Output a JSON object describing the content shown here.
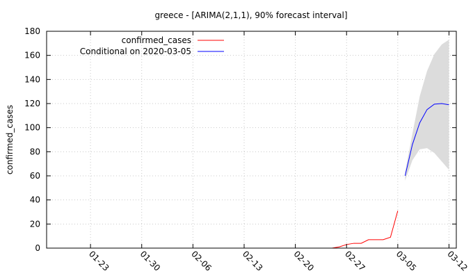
{
  "chart_data": {
    "type": "line",
    "title": "greece -  [ARIMA(2,1,1), 90% forecast interval]",
    "xlabel": "",
    "ylabel": "confirmed_cases",
    "x_range": [
      "2020-01-17",
      "2020-03-13"
    ],
    "ylim": [
      0,
      180
    ],
    "y_ticks": [
      0,
      20,
      40,
      60,
      80,
      100,
      120,
      140,
      160,
      180
    ],
    "x_ticks": [
      {
        "date": "2020-01-23",
        "label": "01-23"
      },
      {
        "date": "2020-01-30",
        "label": "01-30"
      },
      {
        "date": "2020-02-06",
        "label": "02-06"
      },
      {
        "date": "2020-02-13",
        "label": "02-13"
      },
      {
        "date": "2020-02-20",
        "label": "02-20"
      },
      {
        "date": "2020-02-27",
        "label": "02-27"
      },
      {
        "date": "2020-03-05",
        "label": "03-05"
      },
      {
        "date": "2020-03-12",
        "label": "03-12"
      }
    ],
    "grid": true,
    "legend_position": "top-left",
    "series": [
      {
        "name": "confirmed_cases",
        "color": "#ff0000",
        "points": [
          {
            "x": "2020-02-25",
            "y": 0
          },
          {
            "x": "2020-02-26",
            "y": 1
          },
          {
            "x": "2020-02-27",
            "y": 3
          },
          {
            "x": "2020-02-28",
            "y": 4
          },
          {
            "x": "2020-02-29",
            "y": 4
          },
          {
            "x": "2020-03-01",
            "y": 7
          },
          {
            "x": "2020-03-02",
            "y": 7
          },
          {
            "x": "2020-03-03",
            "y": 7
          },
          {
            "x": "2020-03-04",
            "y": 9
          },
          {
            "x": "2020-03-05",
            "y": 31
          }
        ]
      },
      {
        "name": "Conditional on 2020-03-05",
        "color": "#0000ff",
        "points": [
          {
            "x": "2020-03-06",
            "y": 60
          },
          {
            "x": "2020-03-07",
            "y": 86
          },
          {
            "x": "2020-03-08",
            "y": 104
          },
          {
            "x": "2020-03-09",
            "y": 115
          },
          {
            "x": "2020-03-10",
            "y": 119.5
          },
          {
            "x": "2020-03-11",
            "y": 120
          },
          {
            "x": "2020-03-12",
            "y": 119
          }
        ]
      }
    ],
    "forecast_interval": {
      "color": "#dcdcdc",
      "points": [
        {
          "x": "2020-03-06",
          "low": 56,
          "high": 63
        },
        {
          "x": "2020-03-07",
          "low": 73,
          "high": 95
        },
        {
          "x": "2020-03-08",
          "low": 82,
          "high": 126
        },
        {
          "x": "2020-03-09",
          "low": 83,
          "high": 147
        },
        {
          "x": "2020-03-10",
          "low": 79,
          "high": 161
        },
        {
          "x": "2020-03-11",
          "low": 72,
          "high": 169
        },
        {
          "x": "2020-03-12",
          "low": 65,
          "high": 173
        }
      ]
    }
  }
}
